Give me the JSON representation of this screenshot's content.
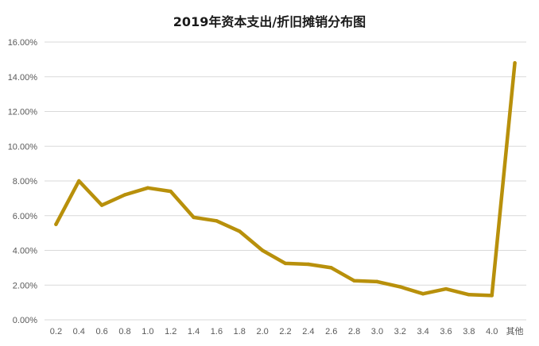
{
  "chart_data": {
    "type": "line",
    "title": "2019年资本支出/折旧摊销分布图",
    "categories": [
      "0.2",
      "0.4",
      "0.6",
      "0.8",
      "1.0",
      "1.2",
      "1.4",
      "1.6",
      "1.8",
      "2.0",
      "2.2",
      "2.4",
      "2.6",
      "2.8",
      "3.0",
      "3.2",
      "3.4",
      "3.6",
      "3.8",
      "4.0",
      "其他"
    ],
    "series": [
      {
        "values": [
          5.5,
          8.0,
          6.6,
          7.2,
          7.6,
          7.4,
          5.9,
          5.7,
          5.1,
          4.0,
          3.25,
          3.2,
          3.0,
          2.25,
          2.2,
          1.9,
          1.5,
          1.78,
          1.45,
          1.4,
          14.8
        ]
      }
    ],
    "y_tick_labels": [
      "0.00%",
      "2.00%",
      "4.00%",
      "6.00%",
      "8.00%",
      "10.00%",
      "12.00%",
      "14.00%",
      "16.00%"
    ],
    "ylim": [
      0,
      16
    ],
    "y_unit": "%",
    "grid": true,
    "line_color": "#B8900B",
    "grid_color": "#D9D9D9",
    "xlabel": "",
    "ylabel": ""
  }
}
